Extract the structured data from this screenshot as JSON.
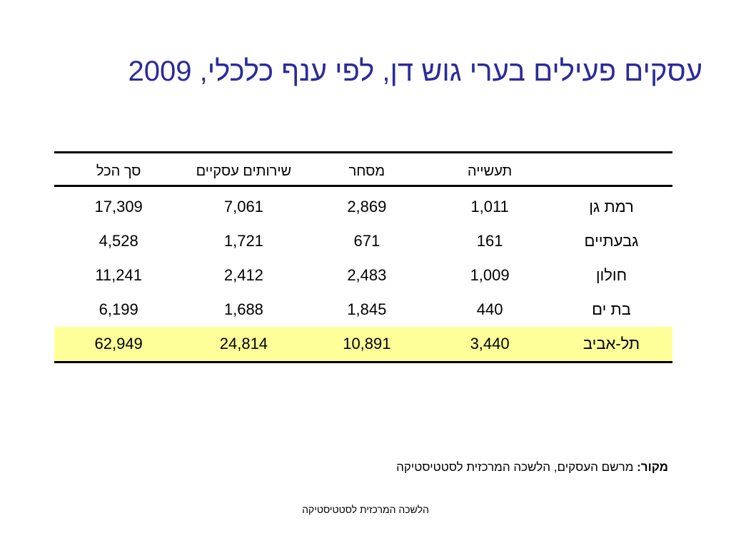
{
  "title": "עסקים פעילים בערי גוש דן, לפי ענף כלכלי, 2009",
  "table": {
    "headers": [
      "",
      "תעשייה",
      "מסחר",
      "שירותים עסקיים",
      "סך הכל"
    ],
    "rows": [
      {
        "city": "רמת גן",
        "industry": "1,011",
        "commerce": "2,869",
        "services": "7,061",
        "total": "17,309"
      },
      {
        "city": "גבעתיים",
        "industry": "161",
        "commerce": "671",
        "services": "1,721",
        "total": "4,528"
      },
      {
        "city": "חולון",
        "industry": "1,009",
        "commerce": "2,483",
        "services": "2,412",
        "total": "11,241"
      },
      {
        "city": "בת ים",
        "industry": "440",
        "commerce": "1,845",
        "services": "1,688",
        "total": "6,199"
      },
      {
        "city": "תל-אביב",
        "industry": "3,440",
        "commerce": "10,891",
        "services": "24,814",
        "total": "62,949"
      }
    ],
    "highlight_color": "#ffff99"
  },
  "source": {
    "label": "מקור:",
    "text": " מרשם העסקים, הלשכה המרכזית לסטטיסטיקה"
  },
  "footer": "הלשכה המרכזית לסטטיסטיקה",
  "colors": {
    "title": "#2b2b9b"
  }
}
